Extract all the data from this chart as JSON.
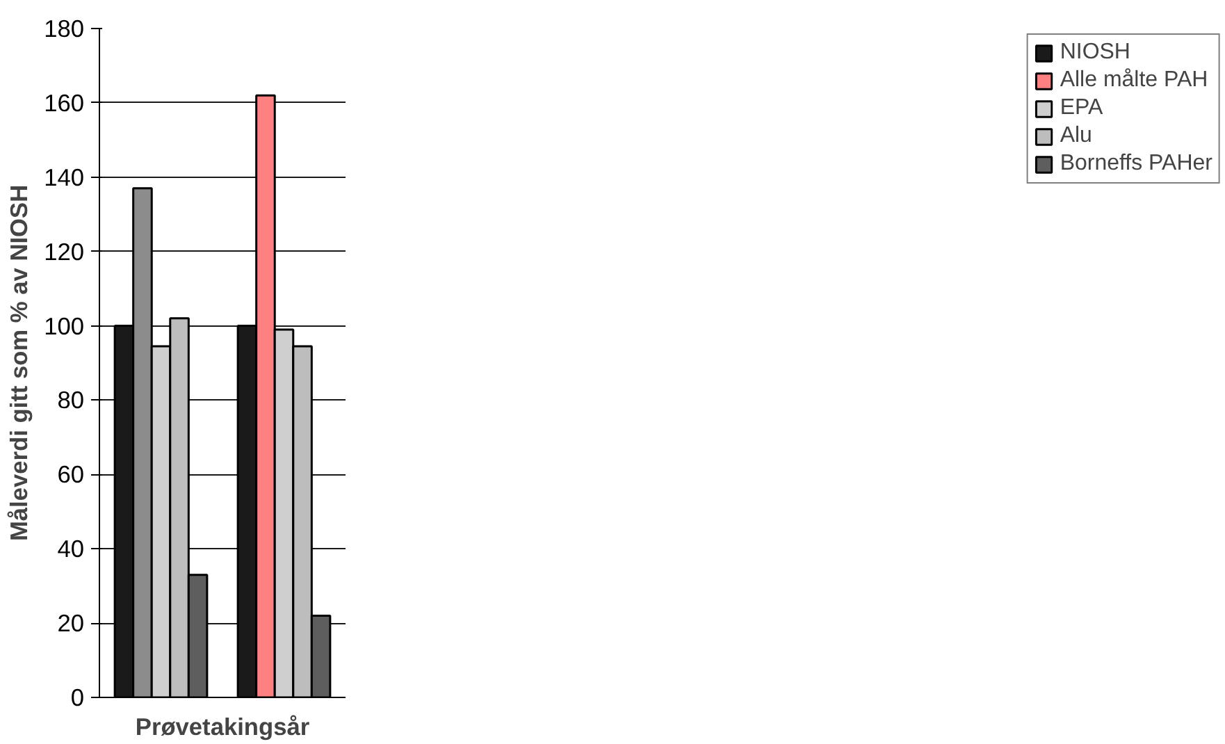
{
  "chart_data": {
    "type": "bar",
    "xlabel": "Prøvetakingsår",
    "ylabel": "Måleverdi gitt som % av NIOSH",
    "categories": [
      null,
      null
    ],
    "series": [
      {
        "name": "NIOSH",
        "color": "#1a1a1a",
        "values": [
          100,
          100
        ]
      },
      {
        "name": "Alle målte PAH",
        "color": "#ff8080",
        "colors": [
          "#8c8c8c",
          "#ff8080"
        ],
        "values": [
          137,
          162
        ]
      },
      {
        "name": "EPA",
        "color": "#cfcfcf",
        "values": [
          94.5,
          99
        ]
      },
      {
        "name": "Alu",
        "color": "#bdbdbd",
        "values": [
          102,
          94.5
        ]
      },
      {
        "name": "Borneffs PAHer",
        "color": "#5e5e5e",
        "values": [
          33,
          22
        ]
      }
    ],
    "ylim": [
      0,
      180
    ],
    "yticks": [
      0,
      20,
      40,
      60,
      80,
      100,
      120,
      140,
      160,
      180
    ],
    "grid": "y",
    "legend": "right",
    "tick_labels": "y"
  }
}
